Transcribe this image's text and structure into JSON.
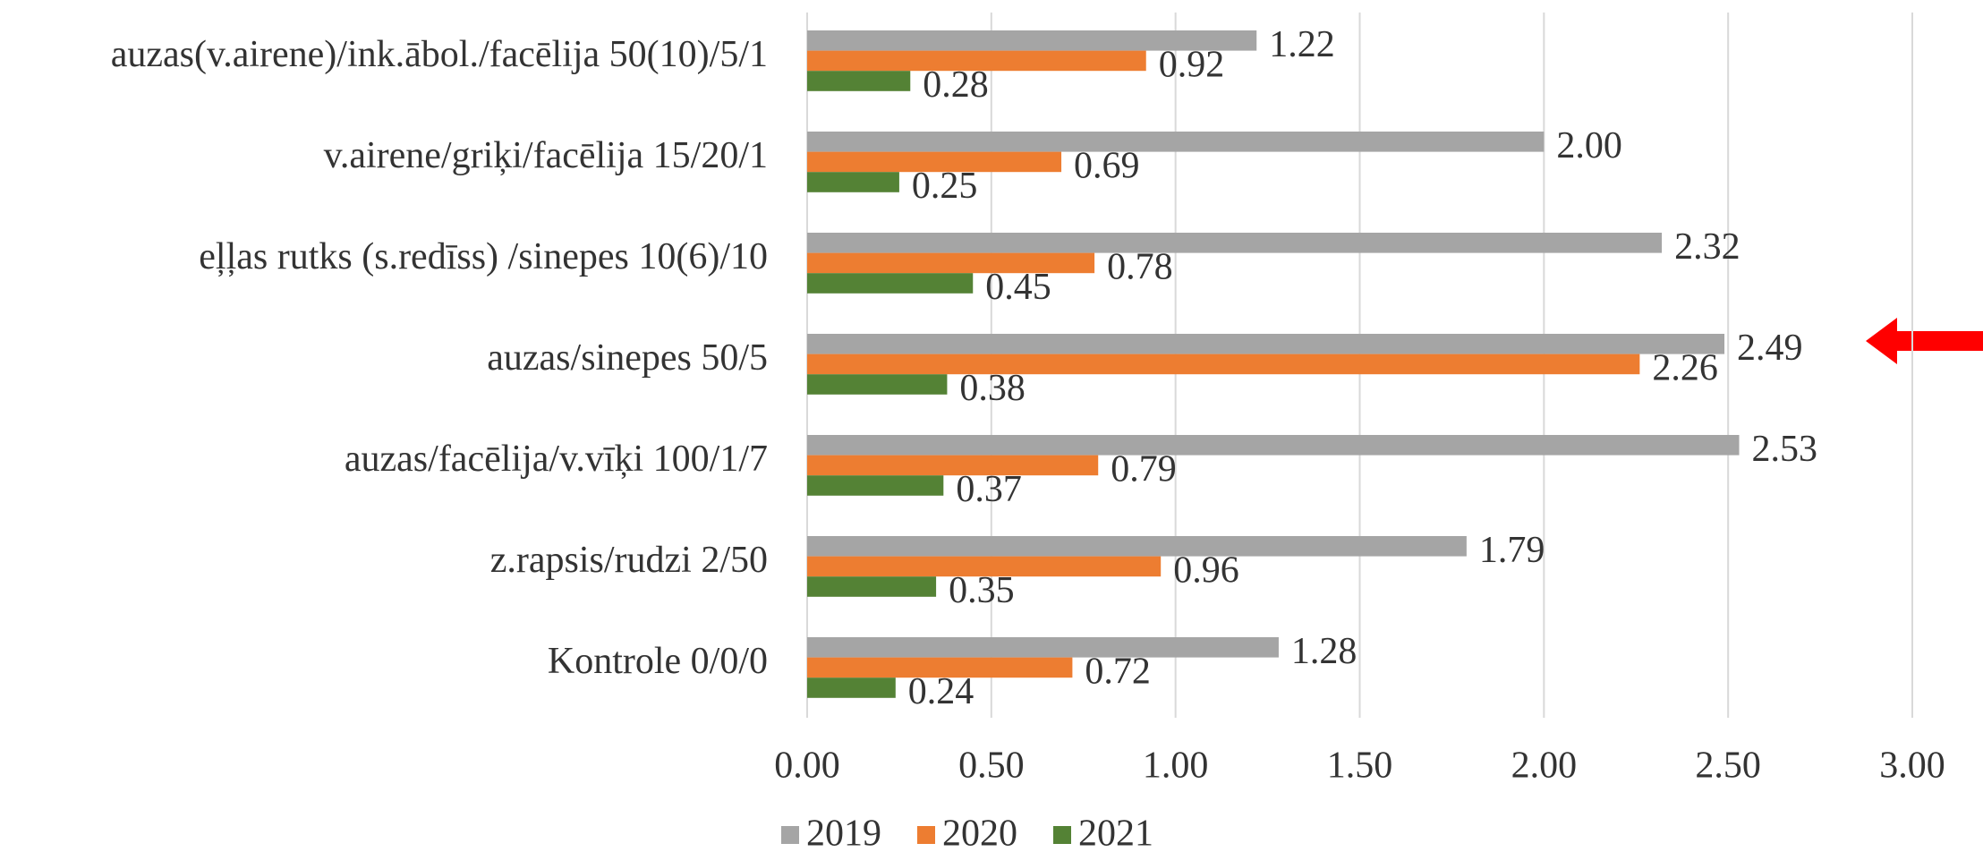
{
  "chart_data": {
    "type": "hbar",
    "categories": [
      "auzas(v.airene)/ink.ābol./facēlija 50(10)/5/1",
      "v.airene/griķi/facēlija  15/20/1",
      "eļļas rutks (s.redīss) /sinepes  10(6)/10",
      "auzas/sinepes  50/5",
      "auzas/facēlija/v.vīķi 100/1/7",
      "z.rapsis/rudzi 2/50",
      "Kontrole   0/0/0"
    ],
    "series": [
      {
        "name": "2019",
        "color": "#a5a5a5",
        "values": [
          1.22,
          2,
          2.32,
          2.49,
          2.53,
          1.79,
          1.28
        ],
        "value_labels": [
          "1.22",
          "2.00",
          "2.32",
          "2.49",
          "2.53",
          "1.79",
          "1.28"
        ]
      },
      {
        "name": "2020",
        "color": "#ed7d31",
        "values": [
          0.92,
          0.69,
          0.78,
          2.26,
          0.79,
          0.96,
          0.72
        ],
        "value_labels": [
          "0.92",
          "0.69",
          "0.78",
          "2.26",
          "0.79",
          "0.96",
          "0.72"
        ]
      },
      {
        "name": "2021",
        "color": "#548235",
        "values": [
          0.28,
          0.25,
          0.45,
          0.38,
          0.37,
          0.35,
          0.24
        ],
        "value_labels": [
          "0.28",
          "0.25",
          "0.45",
          "0.38",
          "0.37",
          "0.35",
          "0.24"
        ]
      }
    ],
    "xlim": [
      0,
      3
    ],
    "xticks": [
      {
        "value": 0,
        "label": "0.00"
      },
      {
        "value": 0.5,
        "label": "0.50"
      },
      {
        "value": 1,
        "label": "1.00"
      },
      {
        "value": 1.5,
        "label": "1.50"
      },
      {
        "value": 2,
        "label": "2.00"
      },
      {
        "value": 2.5,
        "label": "2.50"
      },
      {
        "value": 3,
        "label": "3.00"
      }
    ],
    "grid": true,
    "legend": "bottom"
  }
}
